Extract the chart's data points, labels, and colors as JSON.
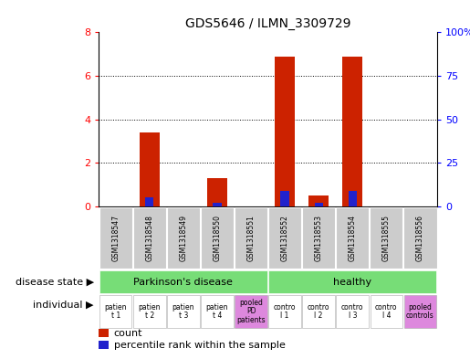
{
  "title": "GDS5646 / ILMN_3309729",
  "samples": [
    "GSM1318547",
    "GSM1318548",
    "GSM1318549",
    "GSM1318550",
    "GSM1318551",
    "GSM1318552",
    "GSM1318553",
    "GSM1318554",
    "GSM1318555",
    "GSM1318556"
  ],
  "counts": [
    0,
    3.4,
    0,
    1.3,
    0,
    6.9,
    0.5,
    6.9,
    0,
    0
  ],
  "percentile_ranks": [
    0,
    5,
    0,
    2,
    0,
    9,
    2,
    9,
    0,
    0
  ],
  "ylim_left": [
    0,
    8
  ],
  "ylim_right": [
    0,
    100
  ],
  "yticks_left": [
    0,
    2,
    4,
    6,
    8
  ],
  "yticks_right": [
    0,
    25,
    50,
    75,
    100
  ],
  "ytick_labels_right": [
    "0",
    "25",
    "50",
    "75",
    "100%"
  ],
  "bar_color_red": "#cc2200",
  "bar_color_blue": "#2222cc",
  "percentile_scale_factor": 0.08,
  "background_color": "#ffffff",
  "label_bg_color": "#cccccc",
  "green_color": "#77dd77",
  "pink_color": "#dd88dd",
  "bar_width": 0.6,
  "blue_bar_width": 0.25
}
